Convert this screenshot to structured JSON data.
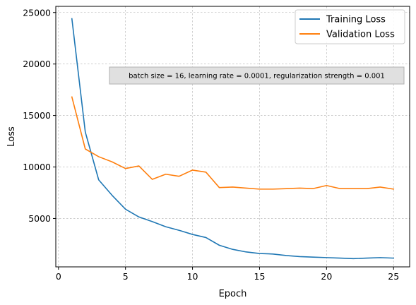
{
  "chart_data": {
    "type": "line",
    "xlabel": "Epoch",
    "ylabel": "Loss",
    "xlim": [
      -0.2,
      26.2
    ],
    "ylim": [
      300,
      25600
    ],
    "xticks": [
      0,
      5,
      10,
      15,
      20,
      25
    ],
    "yticks": [
      5000,
      10000,
      15000,
      20000,
      25000
    ],
    "grid": true,
    "legend_position": "top-right",
    "annotation": "batch size = 16, learning rate = 0.0001, regularization strength = 0.001",
    "x": [
      1,
      2,
      3,
      4,
      5,
      6,
      7,
      8,
      9,
      10,
      11,
      12,
      13,
      14,
      15,
      16,
      17,
      18,
      19,
      20,
      21,
      22,
      23,
      24,
      25
    ],
    "series": [
      {
        "name": "Training Loss",
        "color": "#1f77b4",
        "values": [
          24400,
          13400,
          8750,
          7250,
          5900,
          5150,
          4700,
          4200,
          3850,
          3450,
          3150,
          2400,
          2000,
          1750,
          1600,
          1550,
          1400,
          1300,
          1250,
          1200,
          1150,
          1100,
          1150,
          1200,
          1150
        ]
      },
      {
        "name": "Validation Loss",
        "color": "#ff7f0e",
        "values": [
          16800,
          11750,
          11000,
          10500,
          9850,
          10100,
          8800,
          9300,
          9100,
          9700,
          9500,
          8000,
          8050,
          7950,
          7850,
          7850,
          7900,
          7950,
          7900,
          8200,
          7900,
          7900,
          7900,
          8050,
          7850
        ]
      }
    ]
  }
}
